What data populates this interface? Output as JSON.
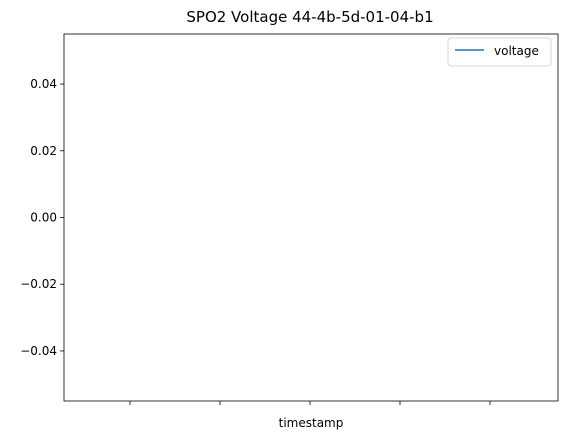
{
  "chart_data": {
    "type": "line",
    "title": "SPO2 Voltage 44-4b-5d-01-04-b1",
    "xlabel": "timestamp",
    "ylabel": "",
    "ylim": [
      -0.055,
      0.055
    ],
    "yticks": [
      0.04,
      0.02,
      0.0,
      -0.02,
      -0.04
    ],
    "ytick_labels": [
      "0.04",
      "0.02",
      "0.00",
      "−0.02",
      "−0.04"
    ],
    "xtick_count": 5,
    "x": [],
    "series": [
      {
        "name": "voltage",
        "color": "#1f77b4",
        "values": []
      }
    ],
    "legend_position": "top-right",
    "grid": false
  }
}
